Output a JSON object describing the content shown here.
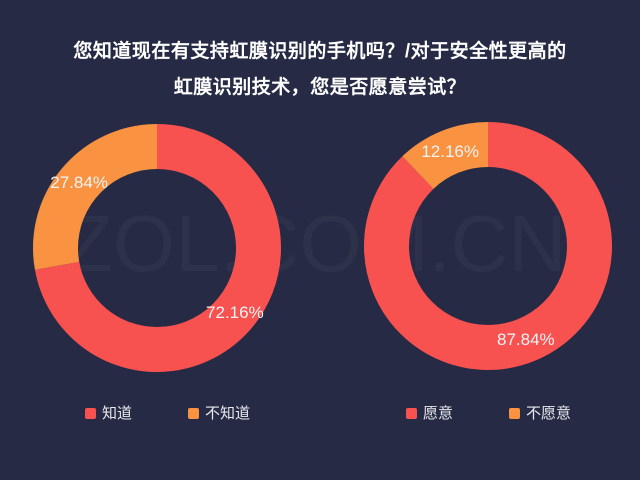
{
  "title": {
    "line1": "您知道现在有支持虹膜识别的手机吗？/对于安全性更高的",
    "line2": "虹膜识别技术，您是否愿意尝试？"
  },
  "watermark": "ZOL.COM.CN",
  "colors": {
    "background": "#262A44",
    "accent_red": "#F85250",
    "accent_orange": "#F99342",
    "title_text": "#FFFFFF",
    "label_text": "#F2F3F5"
  },
  "chart_data": [
    {
      "type": "pie",
      "subtype": "donut",
      "categories": [
        "知道",
        "不知道"
      ],
      "values": [
        72.16,
        27.84
      ],
      "value_labels": [
        "72.16%",
        "27.84%"
      ],
      "colors": [
        "#F85250",
        "#F99342"
      ],
      "legend": [
        "知道",
        "不知道"
      ],
      "legend_position": "bottom"
    },
    {
      "type": "pie",
      "subtype": "donut",
      "categories": [
        "愿意",
        "不愿意"
      ],
      "values": [
        87.84,
        12.16
      ],
      "value_labels": [
        "87.84%",
        "12.16%"
      ],
      "colors": [
        "#F85250",
        "#F99342"
      ],
      "legend": [
        "愿意",
        "不愿意"
      ],
      "legend_position": "bottom"
    }
  ]
}
